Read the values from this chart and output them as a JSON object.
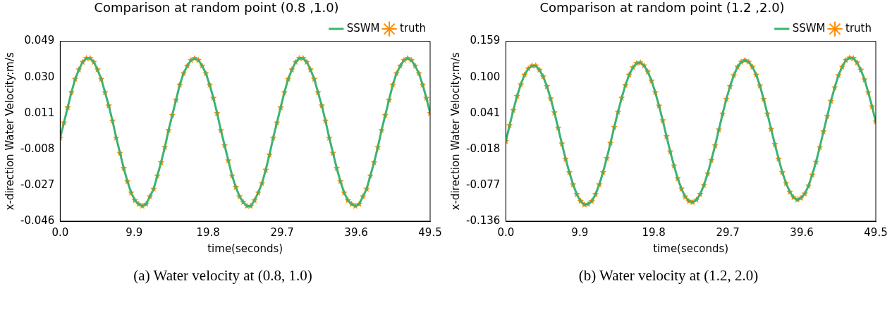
{
  "chart_data": [
    {
      "type": "line",
      "title": "Comparison at random point (0.8 ,1.0)",
      "xlabel": "time(seconds)",
      "ylabel": "x-direction Water Velocity:m/s",
      "x": [
        0,
        0.5,
        1,
        1.5,
        2,
        2.5,
        3,
        3.5,
        4,
        4.5,
        5,
        5.5,
        6,
        6.5,
        7,
        7.5,
        8,
        8.5,
        9,
        9.5,
        10,
        10.5,
        11,
        11.5,
        12,
        12.5,
        13,
        13.5,
        14,
        14.5,
        15,
        15.5,
        16,
        16.5,
        17,
        17.5,
        18,
        18.5,
        19,
        19.5,
        20,
        20.5,
        21,
        21.5,
        22,
        22.5,
        23,
        23.5,
        24,
        24.5,
        25,
        25.5,
        26,
        26.5,
        27,
        27.5,
        28,
        28.5,
        29,
        29.5,
        30,
        30.5,
        31,
        31.5,
        32,
        32.5,
        33,
        33.5,
        34,
        34.5,
        35,
        35.5,
        36,
        36.5,
        37,
        37.5,
        38,
        38.5,
        39,
        39.5,
        40,
        40.5,
        41,
        41.5,
        42,
        42.5,
        43,
        43.5,
        44,
        44.5,
        45,
        45.5,
        46,
        46.5,
        47,
        47.5,
        48,
        48.5,
        49,
        49.5
      ],
      "series": [
        {
          "name": "SSWM",
          "color": "#3cb371",
          "values": [
            -0.002,
            0.006,
            0.014,
            0.022,
            0.029,
            0.034,
            0.038,
            0.04,
            0.04,
            0.038,
            0.034,
            0.029,
            0.022,
            0.015,
            0.007,
            -0.002,
            -0.01,
            -0.018,
            -0.025,
            -0.031,
            -0.035,
            -0.037,
            -0.038,
            -0.037,
            -0.033,
            -0.029,
            -0.022,
            -0.015,
            -0.007,
            0.002,
            0.01,
            0.018,
            0.026,
            0.032,
            0.036,
            0.039,
            0.04,
            0.039,
            0.036,
            0.032,
            0.026,
            0.019,
            0.011,
            0.002,
            -0.006,
            -0.014,
            -0.022,
            -0.028,
            -0.033,
            -0.036,
            -0.038,
            -0.038,
            -0.035,
            -0.031,
            -0.026,
            -0.019,
            -0.011,
            -0.002,
            0.006,
            0.014,
            0.022,
            0.029,
            0.034,
            0.038,
            0.04,
            0.04,
            0.038,
            0.034,
            0.029,
            0.022,
            0.015,
            0.007,
            -0.002,
            -0.01,
            -0.018,
            -0.025,
            -0.031,
            -0.035,
            -0.037,
            -0.038,
            -0.037,
            -0.033,
            -0.029,
            -0.022,
            -0.015,
            -0.007,
            0.002,
            0.01,
            0.018,
            0.026,
            0.032,
            0.036,
            0.039,
            0.04,
            0.039,
            0.036,
            0.032,
            0.026,
            0.019,
            0.011
          ]
        },
        {
          "name": "truth",
          "type": "scatter",
          "marker": "star",
          "color": "#ff8c00",
          "values": [
            -0.002,
            0.006,
            0.014,
            0.022,
            0.029,
            0.034,
            0.038,
            0.04,
            0.04,
            0.038,
            0.034,
            0.029,
            0.022,
            0.015,
            0.007,
            -0.002,
            -0.01,
            -0.018,
            -0.025,
            -0.031,
            -0.035,
            -0.037,
            -0.038,
            -0.037,
            -0.033,
            -0.029,
            -0.022,
            -0.015,
            -0.007,
            0.002,
            0.01,
            0.018,
            0.026,
            0.032,
            0.036,
            0.039,
            0.04,
            0.039,
            0.036,
            0.032,
            0.026,
            0.019,
            0.011,
            0.002,
            -0.006,
            -0.014,
            -0.022,
            -0.028,
            -0.033,
            -0.036,
            -0.038,
            -0.038,
            -0.035,
            -0.031,
            -0.026,
            -0.019,
            -0.011,
            -0.002,
            0.006,
            0.014,
            0.022,
            0.029,
            0.034,
            0.038,
            0.04,
            0.04,
            0.038,
            0.034,
            0.029,
            0.022,
            0.015,
            0.007,
            -0.002,
            -0.01,
            -0.018,
            -0.025,
            -0.031,
            -0.035,
            -0.037,
            -0.038,
            -0.037,
            -0.033,
            -0.029,
            -0.022,
            -0.015,
            -0.007,
            0.002,
            0.01,
            0.018,
            0.026,
            0.032,
            0.036,
            0.039,
            0.04,
            0.039,
            0.036,
            0.032,
            0.026,
            0.019,
            0.011
          ]
        }
      ],
      "xlim": [
        0,
        49.5
      ],
      "xticks": [
        {
          "value": 0,
          "label": "0.0"
        },
        9.9,
        19.8,
        29.7,
        39.6,
        49.5
      ],
      "ylim": [
        -0.046,
        0.049
      ],
      "yticks": [
        -0.046,
        -0.027,
        -0.008,
        0.011,
        {
          "value": 0.03,
          "label": "0.030"
        },
        0.049
      ],
      "legend": "top right",
      "annotations": [
        "(a) Water velocity at (0.8, 1.0)"
      ]
    },
    {
      "type": "line",
      "title": "Comparison at random point (1.2 ,2.0)",
      "xlabel": "time(seconds)",
      "ylabel": "x-direction Water Velocity:m/s",
      "x": [
        0,
        0.5,
        1,
        1.5,
        2,
        2.5,
        3,
        3.5,
        4,
        4.5,
        5,
        5.5,
        6,
        6.5,
        7,
        7.5,
        8,
        8.5,
        9,
        9.5,
        10,
        10.5,
        11,
        11.5,
        12,
        12.5,
        13,
        13.5,
        14,
        14.5,
        15,
        15.5,
        16,
        16.5,
        17,
        17.5,
        18,
        18.5,
        19,
        19.5,
        20,
        20.5,
        21,
        21.5,
        22,
        22.5,
        23,
        23.5,
        24,
        24.5,
        25,
        25.5,
        26,
        26.5,
        27,
        27.5,
        28,
        28.5,
        29,
        29.5,
        30,
        30.5,
        31,
        31.5,
        32,
        32.5,
        33,
        33.5,
        34,
        34.5,
        35,
        35.5,
        36,
        36.5,
        37,
        37.5,
        38,
        38.5,
        39,
        39.5,
        40,
        40.5,
        41,
        41.5,
        42,
        42.5,
        43,
        43.5,
        44,
        44.5,
        45,
        45.5,
        46,
        46.5,
        47,
        47.5,
        48,
        48.5,
        49,
        49.5
      ],
      "series": [
        {
          "name": "SSWM",
          "color": "#3cb371",
          "values": [
            -0.005,
            0.021,
            0.046,
            0.069,
            0.088,
            0.104,
            0.114,
            0.119,
            0.119,
            0.112,
            0.101,
            0.085,
            0.065,
            0.042,
            0.017,
            -0.009,
            -0.034,
            -0.056,
            -0.076,
            -0.092,
            -0.103,
            -0.109,
            -0.108,
            -0.103,
            -0.092,
            -0.076,
            -0.056,
            -0.033,
            -0.008,
            0.018,
            0.043,
            0.066,
            0.087,
            0.104,
            0.116,
            0.123,
            0.124,
            0.119,
            0.109,
            0.094,
            0.075,
            0.053,
            0.029,
            0.003,
            -0.022,
            -0.045,
            -0.066,
            -0.083,
            -0.096,
            -0.103,
            -0.105,
            -0.101,
            -0.092,
            -0.077,
            -0.058,
            -0.036,
            -0.012,
            0.014,
            0.04,
            0.064,
            0.085,
            0.103,
            0.117,
            0.125,
            0.128,
            0.125,
            0.117,
            0.104,
            0.086,
            0.064,
            0.04,
            0.015,
            -0.01,
            -0.034,
            -0.056,
            -0.074,
            -0.088,
            -0.097,
            -0.101,
            -0.098,
            -0.091,
            -0.078,
            -0.06,
            -0.039,
            -0.015,
            0.011,
            0.036,
            0.061,
            0.083,
            0.103,
            0.117,
            0.128,
            0.132,
            0.131,
            0.124,
            0.112,
            0.096,
            0.075,
            0.052,
            0.027
          ]
        },
        {
          "name": "truth",
          "type": "scatter",
          "marker": "star",
          "color": "#ff8c00",
          "values": [
            -0.005,
            0.021,
            0.046,
            0.069,
            0.088,
            0.104,
            0.114,
            0.119,
            0.119,
            0.112,
            0.101,
            0.085,
            0.065,
            0.042,
            0.017,
            -0.009,
            -0.034,
            -0.056,
            -0.076,
            -0.092,
            -0.103,
            -0.109,
            -0.108,
            -0.103,
            -0.092,
            -0.076,
            -0.056,
            -0.033,
            -0.008,
            0.018,
            0.043,
            0.066,
            0.087,
            0.104,
            0.116,
            0.123,
            0.124,
            0.119,
            0.109,
            0.094,
            0.075,
            0.053,
            0.029,
            0.003,
            -0.022,
            -0.045,
            -0.066,
            -0.083,
            -0.096,
            -0.103,
            -0.105,
            -0.101,
            -0.092,
            -0.077,
            -0.058,
            -0.036,
            -0.012,
            0.014,
            0.04,
            0.064,
            0.085,
            0.103,
            0.117,
            0.125,
            0.128,
            0.125,
            0.117,
            0.104,
            0.086,
            0.064,
            0.04,
            0.015,
            -0.01,
            -0.034,
            -0.056,
            -0.074,
            -0.088,
            -0.097,
            -0.101,
            -0.098,
            -0.091,
            -0.078,
            -0.06,
            -0.039,
            -0.015,
            0.011,
            0.036,
            0.061,
            0.083,
            0.103,
            0.117,
            0.128,
            0.132,
            0.131,
            0.124,
            0.112,
            0.096,
            0.075,
            0.052,
            0.027
          ]
        }
      ],
      "xlim": [
        0,
        49.5
      ],
      "xticks": [
        {
          "value": 0,
          "label": "0.0"
        },
        9.9,
        19.8,
        29.7,
        39.6,
        49.5
      ],
      "ylim": [
        -0.136,
        0.159
      ],
      "yticks": [
        -0.136,
        -0.077,
        -0.018,
        0.041,
        {
          "value": 0.1,
          "label": "0.100"
        },
        0.159
      ],
      "legend": "top right",
      "annotations": [
        "(b) Water velocity at (1.2, 2.0)"
      ]
    }
  ]
}
